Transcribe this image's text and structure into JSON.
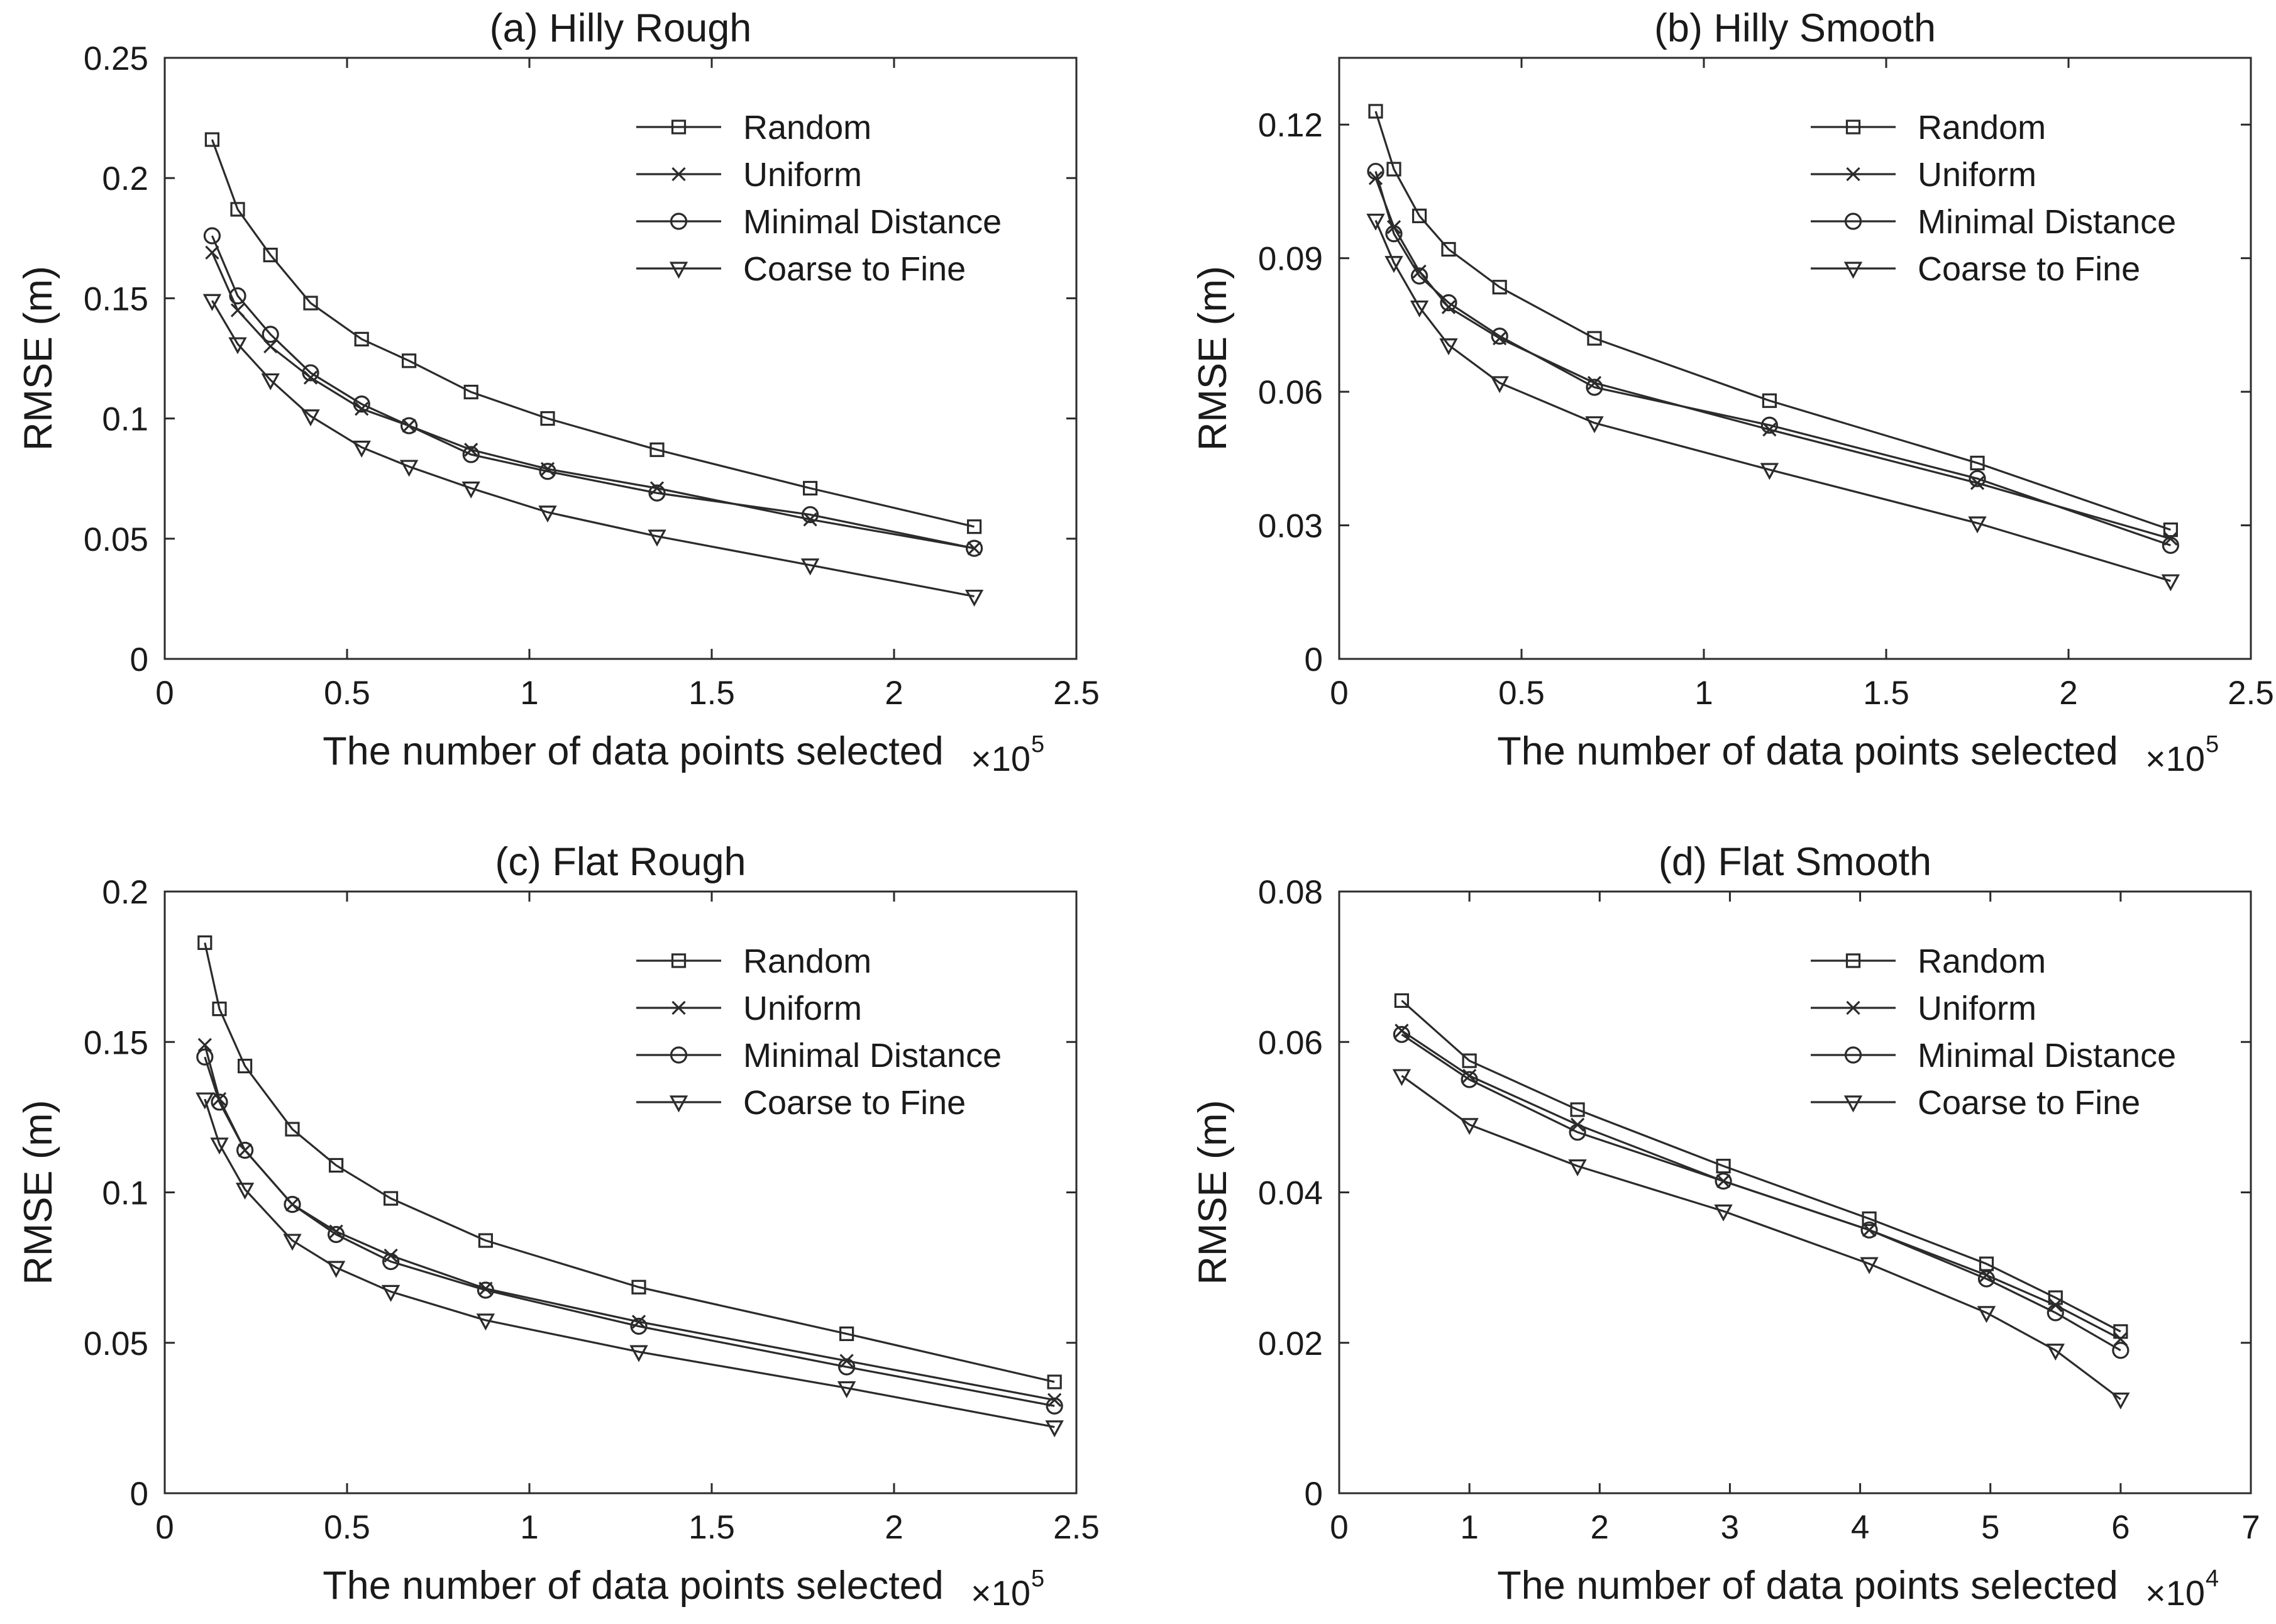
{
  "figure": {
    "layout": "2x2 grid",
    "line_color": "#2b2b2b",
    "background": "#ffffff"
  },
  "chart_data": [
    {
      "type": "line",
      "title": "(a) Hilly Rough",
      "xlabel": "The number of data points selected",
      "x_multiplier": "×10",
      "x_exponent": "5",
      "ylabel": "RMSE (m)",
      "xlim": [
        0,
        2.5
      ],
      "ylim": [
        0,
        0.25
      ],
      "xticks": [
        0,
        0.5,
        1,
        1.5,
        2,
        2.5
      ],
      "xtick_labels": [
        "0",
        "0.5",
        "1",
        "1.5",
        "2",
        "2.5"
      ],
      "yticks": [
        0,
        0.05,
        0.1,
        0.15,
        0.2,
        0.25
      ],
      "ytick_labels": [
        "0",
        "0.05",
        "0.1",
        "0.15",
        "0.2",
        "0.25"
      ],
      "legend_position": "top-right",
      "grid": false,
      "series": [
        {
          "name": "Random",
          "marker": "square",
          "x": [
            0.13,
            0.2,
            0.29,
            0.4,
            0.54,
            0.67,
            0.84,
            1.05,
            1.35,
            1.77,
            2.22
          ],
          "values": [
            0.216,
            0.187,
            0.168,
            0.148,
            0.133,
            0.124,
            0.111,
            0.1,
            0.087,
            0.071,
            0.055
          ]
        },
        {
          "name": "Uniform",
          "marker": "x",
          "x": [
            0.13,
            0.2,
            0.29,
            0.4,
            0.54,
            0.67,
            0.84,
            1.05,
            1.35,
            1.77,
            2.22
          ],
          "values": [
            0.169,
            0.145,
            0.13,
            0.117,
            0.104,
            0.097,
            0.087,
            0.079,
            0.071,
            0.058,
            0.046
          ]
        },
        {
          "name": "Minimal Distance",
          "marker": "circle",
          "x": [
            0.13,
            0.2,
            0.29,
            0.4,
            0.54,
            0.67,
            0.84,
            1.05,
            1.35,
            1.77,
            2.22
          ],
          "values": [
            0.176,
            0.151,
            0.135,
            0.119,
            0.106,
            0.097,
            0.085,
            0.078,
            0.069,
            0.06,
            0.046
          ]
        },
        {
          "name": "Coarse to Fine",
          "marker": "triangle-down",
          "x": [
            0.13,
            0.2,
            0.29,
            0.4,
            0.54,
            0.67,
            0.84,
            1.05,
            1.35,
            1.77,
            2.22
          ],
          "values": [
            0.149,
            0.131,
            0.116,
            0.101,
            0.088,
            0.08,
            0.071,
            0.061,
            0.051,
            0.039,
            0.026
          ]
        }
      ]
    },
    {
      "type": "line",
      "title": "(b) Hilly Smooth",
      "xlabel": "The number of data points selected",
      "x_multiplier": "×10",
      "x_exponent": "5",
      "ylabel": "RMSE (m)",
      "xlim": [
        0,
        2.5
      ],
      "ylim": [
        0,
        0.135
      ],
      "xticks": [
        0,
        0.5,
        1,
        1.5,
        2,
        2.5
      ],
      "xtick_labels": [
        "0",
        "0.5",
        "1",
        "1.5",
        "2",
        "2.5"
      ],
      "yticks": [
        0,
        0.03,
        0.06,
        0.09,
        0.12
      ],
      "ytick_labels": [
        "0",
        "0.03",
        "0.06",
        "0.09",
        "0.12"
      ],
      "legend_position": "top-right",
      "grid": false,
      "series": [
        {
          "name": "Random",
          "marker": "square",
          "x": [
            0.1,
            0.15,
            0.22,
            0.3,
            0.44,
            0.7,
            1.18,
            1.75,
            2.28
          ],
          "values": [
            0.123,
            0.11,
            0.0995,
            0.092,
            0.0835,
            0.072,
            0.058,
            0.044,
            0.029
          ]
        },
        {
          "name": "Uniform",
          "marker": "x",
          "x": [
            0.1,
            0.15,
            0.22,
            0.3,
            0.44,
            0.7,
            1.18,
            1.75,
            2.28
          ],
          "values": [
            0.108,
            0.097,
            0.087,
            0.079,
            0.072,
            0.062,
            0.0515,
            0.0395,
            0.027
          ]
        },
        {
          "name": "Minimal Distance",
          "marker": "circle",
          "x": [
            0.1,
            0.15,
            0.22,
            0.3,
            0.44,
            0.7,
            1.18,
            1.75,
            2.28
          ],
          "values": [
            0.1095,
            0.0955,
            0.086,
            0.08,
            0.0725,
            0.061,
            0.0525,
            0.0405,
            0.0255
          ]
        },
        {
          "name": "Coarse to Fine",
          "marker": "triangle-down",
          "x": [
            0.1,
            0.15,
            0.22,
            0.3,
            0.44,
            0.7,
            1.18,
            1.75,
            2.28
          ],
          "values": [
            0.0985,
            0.089,
            0.079,
            0.0705,
            0.062,
            0.053,
            0.0425,
            0.0305,
            0.0175
          ]
        }
      ]
    },
    {
      "type": "line",
      "title": "(c) Flat Rough",
      "xlabel": "The number of data points selected",
      "x_multiplier": "×10",
      "x_exponent": "5",
      "ylabel": "RMSE (m)",
      "xlim": [
        0,
        2.5
      ],
      "ylim": [
        0,
        0.2
      ],
      "xticks": [
        0,
        0.5,
        1,
        1.5,
        2,
        2.5
      ],
      "xtick_labels": [
        "0",
        "0.5",
        "1",
        "1.5",
        "2",
        "2.5"
      ],
      "yticks": [
        0,
        0.05,
        0.1,
        0.15,
        0.2
      ],
      "ytick_labels": [
        "0",
        "0.05",
        "0.1",
        "0.15",
        "0.2"
      ],
      "legend_position": "top-right",
      "grid": false,
      "series": [
        {
          "name": "Random",
          "marker": "square",
          "x": [
            0.11,
            0.15,
            0.22,
            0.35,
            0.47,
            0.62,
            0.88,
            1.3,
            1.87,
            2.44
          ],
          "values": [
            0.183,
            0.161,
            0.142,
            0.121,
            0.109,
            0.098,
            0.084,
            0.0685,
            0.053,
            0.037
          ]
        },
        {
          "name": "Uniform",
          "marker": "x",
          "x": [
            0.11,
            0.15,
            0.22,
            0.35,
            0.47,
            0.62,
            0.88,
            1.3,
            1.87,
            2.44
          ],
          "values": [
            0.149,
            0.131,
            0.114,
            0.096,
            0.087,
            0.079,
            0.068,
            0.057,
            0.044,
            0.031
          ]
        },
        {
          "name": "Minimal Distance",
          "marker": "circle",
          "x": [
            0.11,
            0.15,
            0.22,
            0.35,
            0.47,
            0.62,
            0.88,
            1.3,
            1.87,
            2.44
          ],
          "values": [
            0.145,
            0.13,
            0.114,
            0.096,
            0.086,
            0.077,
            0.0675,
            0.0555,
            0.042,
            0.029
          ]
        },
        {
          "name": "Coarse to Fine",
          "marker": "triangle-down",
          "x": [
            0.11,
            0.15,
            0.22,
            0.35,
            0.47,
            0.62,
            0.88,
            1.3,
            1.87,
            2.44
          ],
          "values": [
            0.131,
            0.116,
            0.101,
            0.084,
            0.075,
            0.067,
            0.0575,
            0.047,
            0.035,
            0.022
          ]
        }
      ]
    },
    {
      "type": "line",
      "title": "(d) Flat Smooth",
      "xlabel": "The number of data points selected",
      "x_multiplier": "×10",
      "x_exponent": "4",
      "ylabel": "RMSE (m)",
      "xlim": [
        0,
        7
      ],
      "ylim": [
        0,
        0.08
      ],
      "xticks": [
        0,
        1,
        2,
        3,
        4,
        5,
        6,
        7
      ],
      "xtick_labels": [
        "0",
        "1",
        "2",
        "3",
        "4",
        "5",
        "6",
        "7"
      ],
      "yticks": [
        0,
        0.02,
        0.04,
        0.06,
        0.08
      ],
      "ytick_labels": [
        "0",
        "0.02",
        "0.04",
        "0.06",
        "0.08"
      ],
      "legend_position": "top-right",
      "grid": false,
      "series": [
        {
          "name": "Random",
          "marker": "square",
          "x": [
            0.48,
            1.0,
            1.83,
            2.95,
            4.07,
            4.97,
            5.5,
            6.0
          ],
          "values": [
            0.0655,
            0.0575,
            0.051,
            0.0435,
            0.0365,
            0.0305,
            0.026,
            0.0215
          ]
        },
        {
          "name": "Uniform",
          "marker": "x",
          "x": [
            0.48,
            1.0,
            1.83,
            2.95,
            4.07,
            4.97,
            5.5,
            6.0
          ],
          "values": [
            0.0615,
            0.0555,
            0.049,
            0.0415,
            0.035,
            0.029,
            0.025,
            0.0205
          ]
        },
        {
          "name": "Minimal Distance",
          "marker": "circle",
          "x": [
            0.48,
            1.0,
            1.83,
            2.95,
            4.07,
            4.97,
            5.5,
            6.0
          ],
          "values": [
            0.061,
            0.055,
            0.048,
            0.0415,
            0.035,
            0.0285,
            0.024,
            0.019
          ]
        },
        {
          "name": "Coarse to Fine",
          "marker": "triangle-down",
          "x": [
            0.48,
            1.0,
            1.83,
            2.95,
            4.07,
            4.97,
            5.5,
            6.0
          ],
          "values": [
            0.0555,
            0.049,
            0.0435,
            0.0375,
            0.0305,
            0.024,
            0.019,
            0.0125
          ]
        }
      ]
    }
  ]
}
